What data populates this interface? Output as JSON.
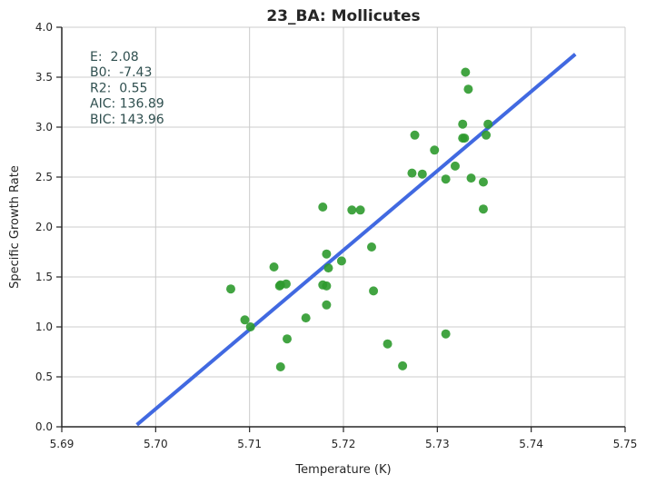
{
  "chart_data": {
    "type": "scatter",
    "title": "23_BA: Mollicutes",
    "xlabel": "Temperature (K)",
    "ylabel": "Specific Growth Rate",
    "xlim": [
      5.69,
      5.75
    ],
    "ylim": [
      0.0,
      4.0
    ],
    "xticks": [
      "5.69",
      "5.70",
      "5.71",
      "5.72",
      "5.73",
      "5.74",
      "5.75"
    ],
    "yticks": [
      "0.0",
      "0.5",
      "1.0",
      "1.5",
      "2.0",
      "2.5",
      "3.0",
      "3.5",
      "4.0"
    ],
    "grid": true,
    "colors": {
      "points": "#2e9a2e",
      "fit": "#4169e1",
      "annotation": "#2f4f4f",
      "grid": "#cccccc"
    },
    "annotation_lines": [
      "E:  2.08",
      "B0:  -7.43",
      "R2:  0.55",
      "AIC: 136.89",
      "BIC: 143.96"
    ],
    "fit_line": {
      "x": [
        5.698,
        5.7447
      ],
      "y": [
        0.02,
        3.73
      ]
    },
    "points": [
      {
        "x": 5.708,
        "y": 1.38
      },
      {
        "x": 5.7095,
        "y": 1.07
      },
      {
        "x": 5.7101,
        "y": 1.0
      },
      {
        "x": 5.7126,
        "y": 1.6
      },
      {
        "x": 5.7132,
        "y": 1.41
      },
      {
        "x": 5.7133,
        "y": 1.42
      },
      {
        "x": 5.7139,
        "y": 1.43
      },
      {
        "x": 5.714,
        "y": 0.88
      },
      {
        "x": 5.7133,
        "y": 0.6
      },
      {
        "x": 5.716,
        "y": 1.09
      },
      {
        "x": 5.7178,
        "y": 2.2
      },
      {
        "x": 5.7178,
        "y": 1.42
      },
      {
        "x": 5.7182,
        "y": 1.41
      },
      {
        "x": 5.7182,
        "y": 1.73
      },
      {
        "x": 5.7184,
        "y": 1.59
      },
      {
        "x": 5.7182,
        "y": 1.22
      },
      {
        "x": 5.7198,
        "y": 1.66
      },
      {
        "x": 5.7209,
        "y": 2.17
      },
      {
        "x": 5.7218,
        "y": 2.17
      },
      {
        "x": 5.723,
        "y": 1.8
      },
      {
        "x": 5.7232,
        "y": 1.36
      },
      {
        "x": 5.7247,
        "y": 0.83
      },
      {
        "x": 5.7263,
        "y": 0.61
      },
      {
        "x": 5.7273,
        "y": 2.54
      },
      {
        "x": 5.7276,
        "y": 2.92
      },
      {
        "x": 5.7284,
        "y": 2.53
      },
      {
        "x": 5.7297,
        "y": 2.77
      },
      {
        "x": 5.7309,
        "y": 2.48
      },
      {
        "x": 5.7309,
        "y": 0.93
      },
      {
        "x": 5.7319,
        "y": 2.61
      },
      {
        "x": 5.7327,
        "y": 3.03
      },
      {
        "x": 5.7327,
        "y": 2.89
      },
      {
        "x": 5.7329,
        "y": 2.89
      },
      {
        "x": 5.733,
        "y": 3.55
      },
      {
        "x": 5.7333,
        "y": 3.38
      },
      {
        "x": 5.7336,
        "y": 2.49
      },
      {
        "x": 5.7349,
        "y": 2.45
      },
      {
        "x": 5.7349,
        "y": 2.18
      },
      {
        "x": 5.7352,
        "y": 2.92
      },
      {
        "x": 5.7354,
        "y": 3.03
      }
    ]
  }
}
